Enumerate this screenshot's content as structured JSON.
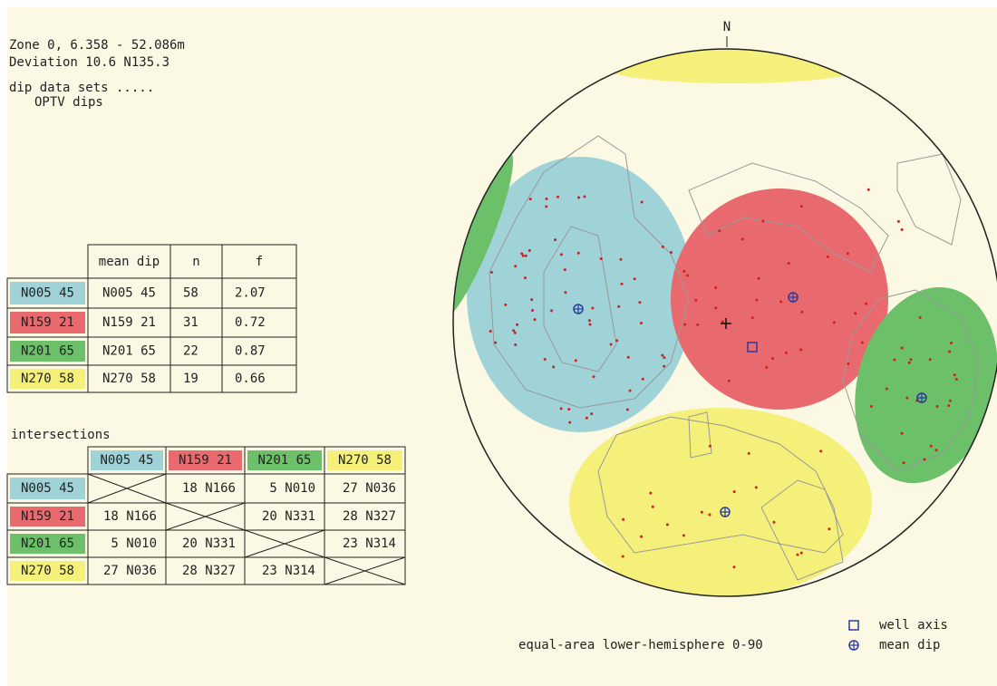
{
  "header": {
    "lines": [
      "Zone 0, 6.358 - 52.086m",
      "Deviation  10.6 N135.3",
      "dip data sets .....",
      "OPTV dips"
    ]
  },
  "sets": [
    {
      "label": "N005 45",
      "color": "#9fd3d8"
    },
    {
      "label": "N159 21",
      "color": "#e96a6e"
    },
    {
      "label": "N201 65",
      "color": "#6cc06a"
    },
    {
      "label": "N270 58",
      "color": "#f4f07a"
    }
  ],
  "table": {
    "columns": [
      "mean dip",
      "n",
      "f"
    ],
    "rows": [
      [
        "N005 45",
        "58",
        "2.07"
      ],
      [
        "N159 21",
        "31",
        "0.72"
      ],
      [
        "N201 65",
        "22",
        "0.87"
      ],
      [
        "N270 58",
        "19",
        "0.66"
      ]
    ]
  },
  "intersections": {
    "title": "intersections",
    "rows": [
      [
        null,
        "18 N166",
        "5 N010",
        "27 N036"
      ],
      [
        "18 N166",
        null,
        "20 N331",
        "28 N327"
      ],
      [
        "5 N010",
        "20 N331",
        null,
        "23 N314"
      ],
      [
        "27 N036",
        "28 N327",
        "23 N314",
        null
      ]
    ]
  },
  "stereonet": {
    "north": "N",
    "caption": "equal-area  lower-hemisphere  0-90",
    "legend": [
      "well axis",
      "mean dip"
    ]
  }
}
